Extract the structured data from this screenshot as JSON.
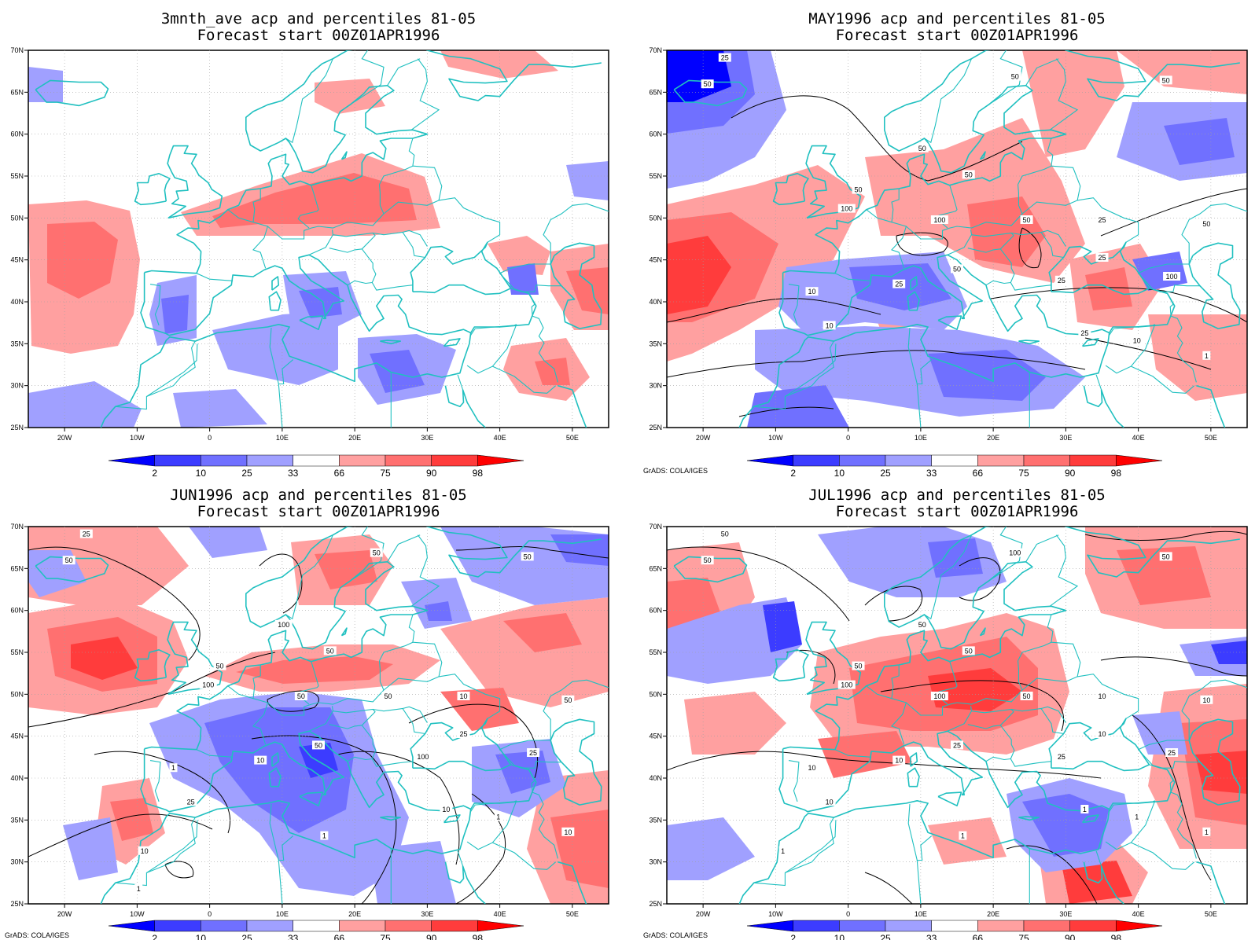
{
  "figure": {
    "credit": "GrADS: COLA/IGES",
    "lon_ticks": [
      "20W",
      "10W",
      "0",
      "10E",
      "20E",
      "30E",
      "40E",
      "50E"
    ],
    "lat_ticks": [
      "25N",
      "30N",
      "35N",
      "40N",
      "45N",
      "50N",
      "55N",
      "60N",
      "65N",
      "70N"
    ],
    "colorbar": {
      "levels": [
        "2",
        "10",
        "25",
        "33",
        "66",
        "75",
        "90",
        "98"
      ],
      "colors": [
        "#0000ff",
        "#3c3cff",
        "#7070ff",
        "#a0a0ff",
        "#ffffff",
        "#ffa0a0",
        "#ff7070",
        "#ff3c3c",
        "#ff0000"
      ]
    },
    "coastline_color": "#20c0c0",
    "contour_color": "#000000"
  },
  "panels": [
    {
      "title_line1": "3mnth_ave acp and percentiles 81-05",
      "title_line2": "Forecast start 00Z01APR1996",
      "show_credit": false,
      "contour_labels": []
    },
    {
      "title_line1": "MAY1996 acp and percentiles 81-05",
      "title_line2": "Forecast start 00Z01APR1996",
      "show_credit": true,
      "contour_labels": [
        "25",
        "50",
        "50",
        "50",
        "50",
        "50",
        "50",
        "100",
        "100",
        "50",
        "25",
        "50",
        "25",
        "25",
        "100",
        "25",
        "10",
        "50",
        "10",
        "25",
        "10",
        "1"
      ]
    },
    {
      "title_line1": "JUN1996 acp and percentiles 81-05",
      "title_line2": "Forecast start 00Z01APR1996",
      "show_credit": true,
      "contour_labels": [
        "25",
        "50",
        "50",
        "50",
        "100",
        "50",
        "50",
        "100",
        "50",
        "50",
        "10",
        "50",
        "25",
        "100",
        "25",
        "10",
        "1",
        "50",
        "25",
        "10",
        "1",
        "10",
        "10",
        "1",
        "1"
      ]
    },
    {
      "title_line1": "JUL1996 acp and percentiles 81-05",
      "title_line2": "Forecast start 00Z01APR1996",
      "show_credit": true,
      "contour_labels": [
        "50",
        "50",
        "100",
        "50",
        "50",
        "50",
        "50",
        "100",
        "100",
        "50",
        "10",
        "10",
        "10",
        "25",
        "25",
        "10",
        "10",
        "25",
        "10",
        "1",
        "1",
        "1",
        "1",
        "1"
      ]
    }
  ]
}
